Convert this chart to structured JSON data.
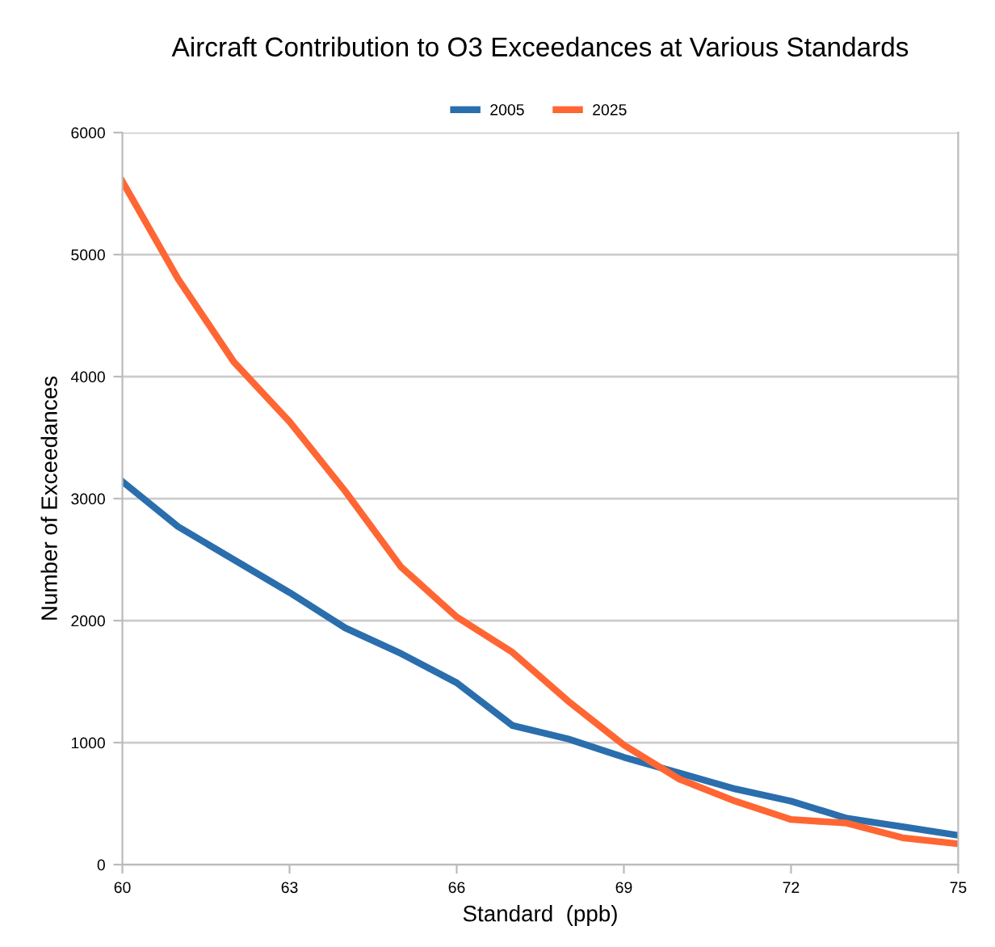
{
  "chart_data": {
    "type": "line",
    "title": "Aircraft Contribution to O3 Exceedances at Various Standards",
    "xlabel": "Standard  (ppb)",
    "ylabel": "Number of Exceedances",
    "x": [
      60,
      61,
      62,
      63,
      64,
      65,
      66,
      67,
      68,
      69,
      70,
      71,
      72,
      73,
      74,
      75
    ],
    "series": [
      {
        "name": "2005",
        "color": "#2a6ead",
        "values": [
          3140,
          2770,
          2500,
          2230,
          1940,
          1730,
          1490,
          1140,
          1030,
          880,
          750,
          620,
          520,
          380,
          310,
          240
        ]
      },
      {
        "name": "2025",
        "color": "#ff6633",
        "values": [
          5600,
          4800,
          4120,
          3630,
          3060,
          2440,
          2030,
          1740,
          1340,
          980,
          700,
          520,
          370,
          340,
          220,
          170
        ]
      }
    ],
    "xlim": [
      60,
      75
    ],
    "xticks": [
      60,
      63,
      66,
      69,
      72,
      75
    ],
    "ylim": [
      0,
      6000
    ],
    "yticks": [
      0,
      1000,
      2000,
      3000,
      4000,
      5000,
      6000
    ],
    "grid": "y",
    "legend": "top",
    "marker": "none",
    "line_style": "solid"
  }
}
